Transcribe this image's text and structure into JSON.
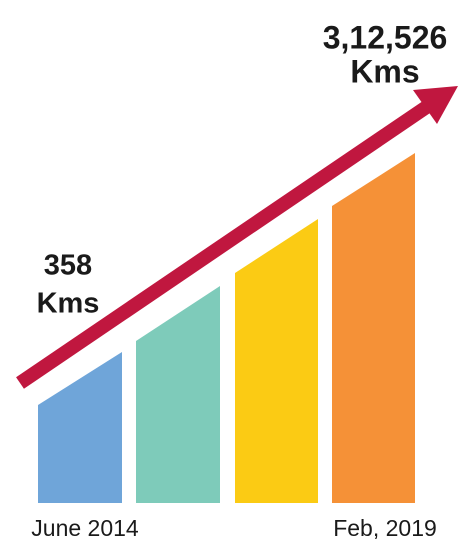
{
  "start": {
    "value": "358",
    "unit": "Kms",
    "date": "June 2014"
  },
  "end": {
    "value": "3,12,526",
    "unit": "Kms",
    "date": "Feb, 2019"
  }
}
